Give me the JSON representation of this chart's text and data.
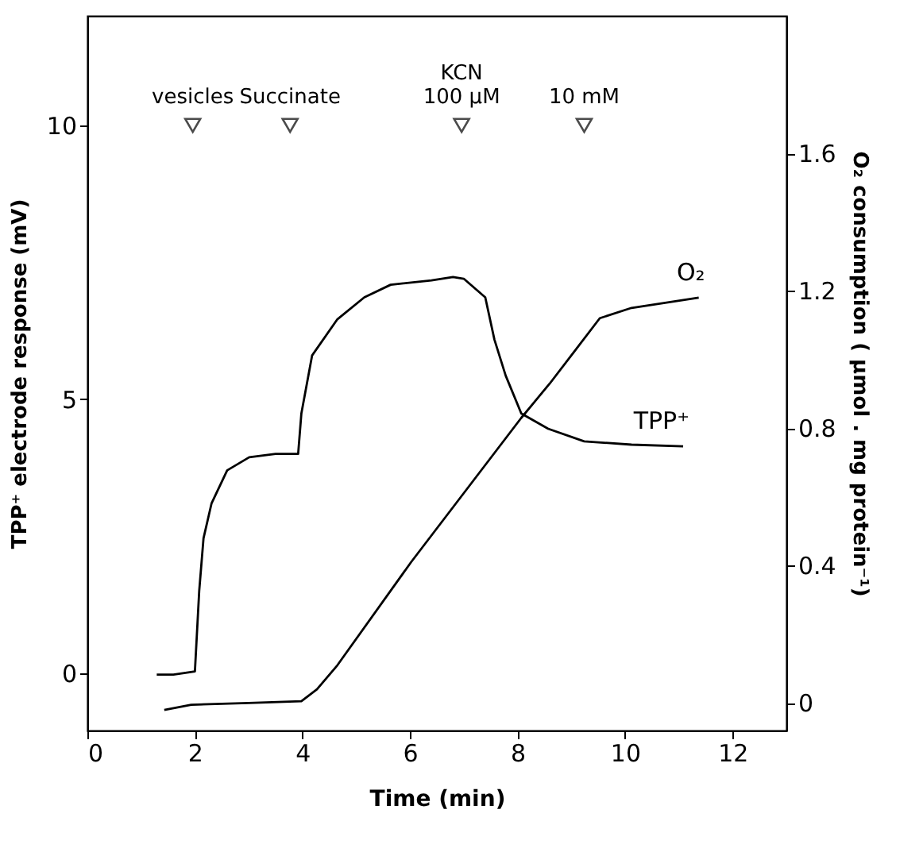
{
  "chart_data": {
    "type": "line",
    "xlabel": "Time (min)",
    "ylabel": "TPP⁺ electrode response  (mV)",
    "y2label": "O₂ consumption ( μmol . mg protein⁻¹)",
    "xlim": [
      0,
      13
    ],
    "xticks": [
      0,
      2,
      4,
      6,
      8,
      10,
      12
    ],
    "ylim": [
      -1.05,
      12
    ],
    "yticks": [
      0,
      5,
      10
    ],
    "y2lim": [
      -0.08,
      2.0
    ],
    "y2ticks": [
      0,
      0.4,
      0.8,
      1.2,
      1.6
    ],
    "grid": false,
    "marker": "none",
    "line_style": "solid",
    "series": [
      {
        "name": "TPP⁺",
        "color": "#000000",
        "x": [
          1.29,
          1.6,
          2.0,
          2.08,
          2.16,
          2.31,
          2.6,
          3.01,
          3.5,
          3.92,
          3.98,
          4.18,
          4.65,
          5.15,
          5.64,
          6.4,
          6.8,
          7.0,
          7.4,
          7.57,
          7.78,
          8.07,
          8.57,
          9.24,
          10.12,
          11.08
        ],
        "values": [
          -0.03,
          -0.03,
          0.03,
          1.5,
          2.46,
          3.1,
          3.7,
          3.94,
          4.0,
          4.0,
          4.74,
          5.8,
          6.46,
          6.86,
          7.09,
          7.17,
          7.23,
          7.2,
          6.86,
          6.09,
          5.43,
          4.74,
          4.46,
          4.23,
          4.17,
          4.14
        ]
      },
      {
        "name": "O₂",
        "color": "#000000",
        "axis": "y2",
        "x": [
          1.43,
          1.93,
          3.0,
          3.98,
          4.27,
          4.65,
          6.02,
          8.07,
          8.6,
          9.04,
          9.53,
          10.12,
          11.37
        ],
        "values": [
          -0.02,
          -0.005,
          0.0,
          0.005,
          0.04,
          0.11,
          0.41,
          0.83,
          0.93,
          1.02,
          1.12,
          1.15,
          1.18
        ]
      }
    ],
    "annotations": [
      {
        "text": "vesicles",
        "x": 1.96,
        "y": 10
      },
      {
        "text": "Succinate",
        "x": 3.77,
        "y": 10
      },
      {
        "text": "KCN\n100 μM",
        "x": 6.96,
        "y": 10
      },
      {
        "text": "10 mM",
        "x": 9.24,
        "y": 10
      }
    ]
  }
}
